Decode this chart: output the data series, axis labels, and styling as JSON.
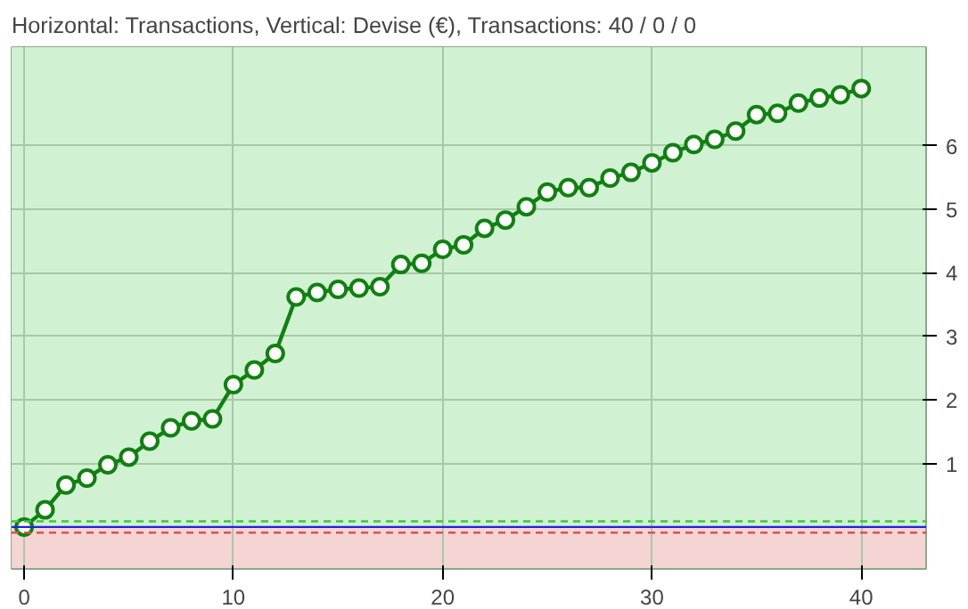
{
  "chart_data": {
    "type": "line",
    "title": "Horizontal: Transactions, Vertical: Devise (€), Transactions: 40 / 0 / 0",
    "x": [
      0,
      1,
      2,
      3,
      4,
      5,
      6,
      7,
      8,
      9,
      10,
      11,
      12,
      13,
      14,
      15,
      16,
      17,
      18,
      19,
      20,
      21,
      22,
      23,
      24,
      25,
      26,
      27,
      28,
      29,
      30,
      31,
      32,
      33,
      34,
      35,
      36,
      37,
      38,
      39,
      40
    ],
    "series": [
      {
        "color": "#118011",
        "values": [
          0,
          0.27,
          0.66,
          0.77,
          0.98,
          1.1,
          1.35,
          1.56,
          1.67,
          1.7,
          2.24,
          2.47,
          2.73,
          3.62,
          3.69,
          3.74,
          3.76,
          3.78,
          4.13,
          4.15,
          4.37,
          4.44,
          4.7,
          4.83,
          5.04,
          5.27,
          5.34,
          5.34,
          5.49,
          5.58,
          5.73,
          5.89,
          6.02,
          6.1,
          6.23,
          6.49,
          6.51,
          6.67,
          6.75,
          6.8,
          6.9
        ]
      }
    ],
    "xlim": [
      -0.6,
      43.1
    ],
    "ylim": [
      -0.66,
      7.55
    ],
    "xticks": [
      0,
      10,
      20,
      30,
      40
    ],
    "yticks": [
      1,
      2,
      3,
      4,
      5,
      6
    ],
    "grid": true,
    "marker": "circle",
    "line_style": "solid",
    "ref_lines": [
      {
        "axis": "y",
        "value": 0,
        "color": "#2222dd",
        "line_style": "solid"
      },
      {
        "axis": "y",
        "value": 0.09,
        "color": "#33cc33",
        "line_style": "dashed"
      },
      {
        "axis": "y",
        "value": -0.09,
        "color": "#e05050",
        "line_style": "dashed"
      }
    ],
    "bands": [
      {
        "axis": "y",
        "from": 0,
        "to": 7.55,
        "color": "#d0f2d2"
      },
      {
        "axis": "y",
        "from": -0.66,
        "to": 0,
        "color": "#f5d4d4"
      }
    ]
  }
}
